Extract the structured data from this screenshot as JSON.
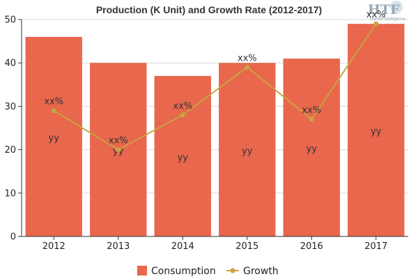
{
  "logo": {
    "name": "HTF",
    "tagline": "Market Intelligence"
  },
  "chart_data": {
    "type": "bar",
    "title": "Production (K Unit) and Growth Rate (2012-2017)",
    "categories": [
      "2012",
      "2013",
      "2014",
      "2015",
      "2016",
      "2017"
    ],
    "ylim": [
      0,
      50
    ],
    "yticks": [
      0,
      10,
      20,
      30,
      40,
      50
    ],
    "grid": true,
    "legend_position": "bottom",
    "series": [
      {
        "name": "Consumption",
        "type": "bar",
        "color": "#e8674d",
        "values": [
          46,
          40,
          37,
          40,
          41,
          49
        ],
        "data_labels": [
          "yy",
          "yy",
          "yy",
          "yy",
          "yy",
          "yy"
        ]
      },
      {
        "name": "Growth",
        "type": "line",
        "color": "#c8a441",
        "values": [
          29,
          20,
          28,
          39,
          27,
          49
        ],
        "data_labels": [
          "xx%",
          "xx%",
          "xx%",
          "xx%",
          "xx%",
          "xx%"
        ]
      }
    ]
  }
}
